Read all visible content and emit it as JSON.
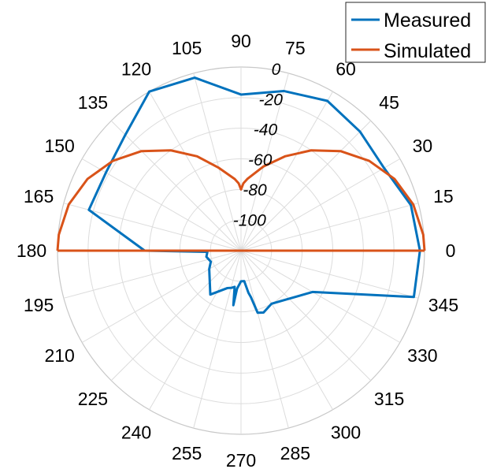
{
  "chart_data": {
    "type": "polar",
    "angle_unit": "degrees",
    "theta_ticks": [
      "0",
      "15",
      "30",
      "45",
      "60",
      "75",
      "90",
      "105",
      "120",
      "135",
      "150",
      "165",
      "180",
      "195",
      "210",
      "225",
      "240",
      "255",
      "270",
      "285",
      "300",
      "315",
      "330",
      "345"
    ],
    "theta_tick_values": [
      0,
      15,
      30,
      45,
      60,
      75,
      90,
      105,
      120,
      135,
      150,
      165,
      180,
      195,
      210,
      225,
      240,
      255,
      270,
      285,
      300,
      315,
      330,
      345
    ],
    "r_ticks": [
      "0",
      "-20",
      "-40",
      "-60",
      "-80",
      "-100"
    ],
    "r_tick_values": [
      0,
      -20,
      -40,
      -60,
      -80,
      -100
    ],
    "r_tick_angle": 80,
    "rlim": [
      -120,
      0
    ],
    "grid": true,
    "legend_position": "top-right",
    "series": [
      {
        "name": "Measured",
        "color": "#0072BD",
        "theta": [
          0,
          15,
          30,
          45,
          60,
          75,
          90,
          105,
          120,
          135,
          150,
          165,
          180,
          182,
          190,
          200,
          210,
          235,
          250,
          256,
          260,
          262,
          264,
          270,
          276,
          280,
          282,
          285,
          290,
          300,
          330,
          345,
          360
        ],
        "r": [
          -3,
          -5,
          -12,
          -10,
          -7,
          -12,
          -18,
          -3,
          0,
          -13,
          -18,
          -17,
          -57,
          -98,
          -97,
          -99,
          -96,
          -85,
          -94,
          -95,
          -96,
          -84,
          -95,
          -100,
          -100,
          -92,
          -89,
          -78,
          -77,
          -80,
          -66,
          -3,
          -3
        ]
      },
      {
        "name": "Simulated",
        "color": "#D95319",
        "theta": [
          0,
          5,
          15,
          25,
          35,
          45,
          55,
          65,
          75,
          85,
          88,
          90,
          92,
          95,
          105,
          115,
          125,
          135,
          145,
          155,
          165,
          175,
          180
        ],
        "r": [
          0,
          -0.4,
          -3.4,
          -9.2,
          -17.7,
          -28,
          -40,
          -52,
          -63,
          -73,
          -76,
          -80,
          -76,
          -73,
          -64,
          -52,
          -40,
          -28,
          -17.7,
          -9.2,
          -3.4,
          -0.4,
          0
        ]
      }
    ]
  }
}
